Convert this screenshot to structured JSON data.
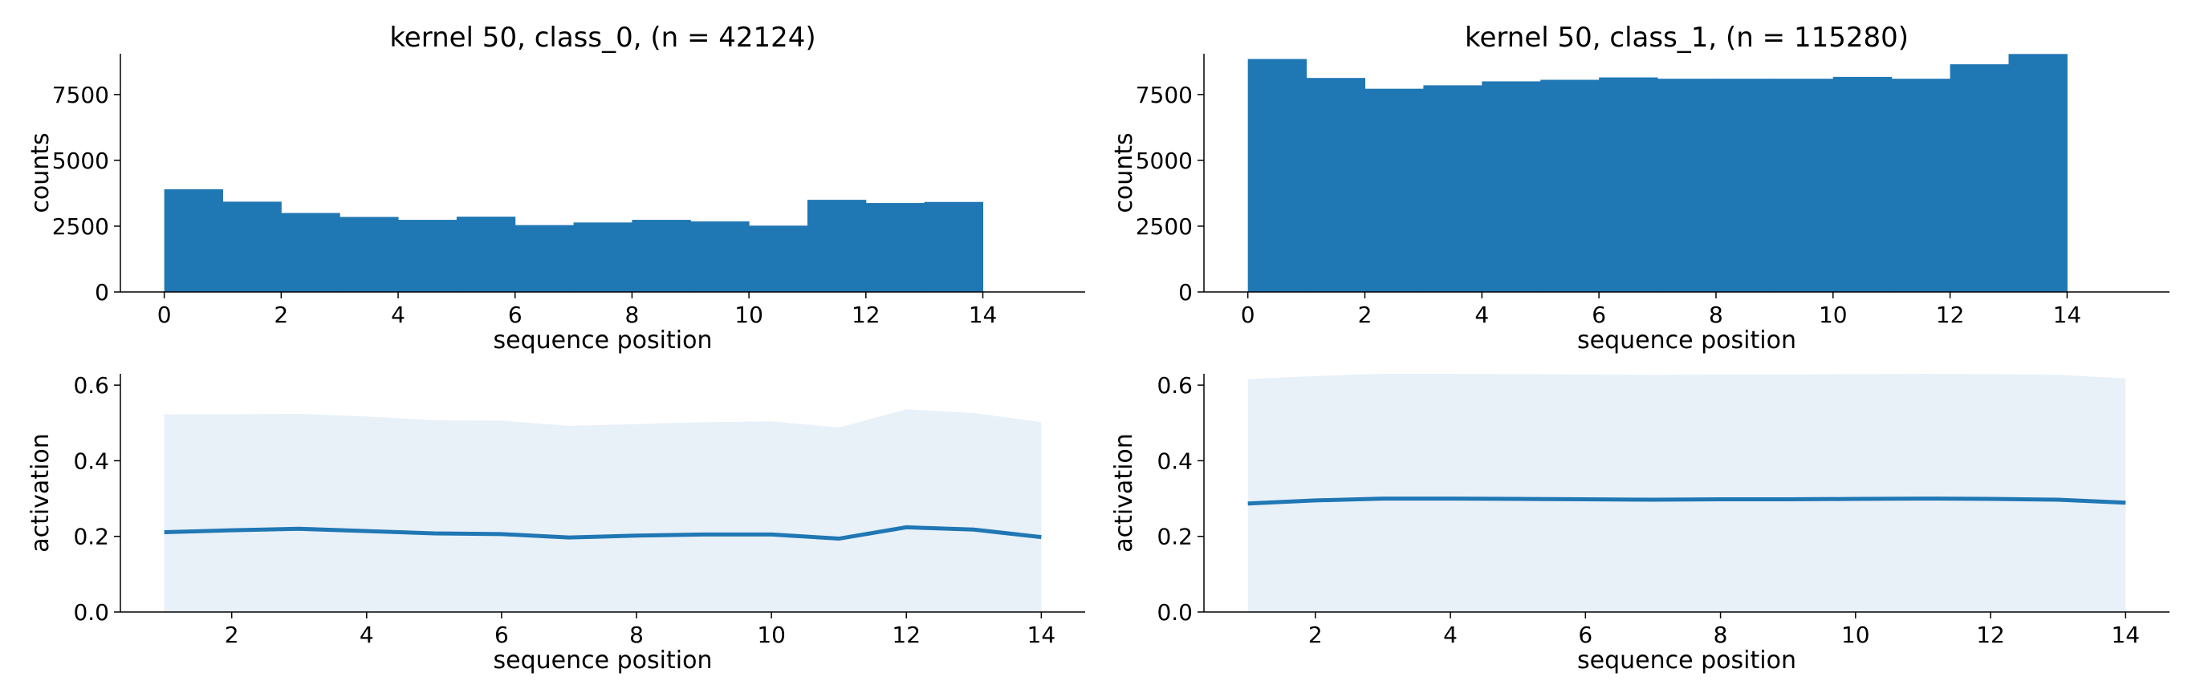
{
  "chart_data": [
    {
      "type": "bar",
      "title": "kernel 50, class_0, (n = 42124)",
      "xlabel": "sequence position",
      "ylabel": "counts",
      "xlim": [
        -0.75,
        15.75
      ],
      "ylim": [
        0,
        9050
      ],
      "xticks": [
        0,
        2,
        4,
        6,
        8,
        10,
        12,
        14
      ],
      "yticks": [
        0,
        2500,
        5000,
        7500
      ],
      "color": "#1f77b4",
      "bins": [
        {
          "start": 0,
          "end": 1,
          "value": 3900
        },
        {
          "start": 1,
          "end": 2,
          "value": 3430
        },
        {
          "start": 2,
          "end": 3,
          "value": 3000
        },
        {
          "start": 3,
          "end": 4,
          "value": 2850
        },
        {
          "start": 4,
          "end": 5,
          "value": 2740
        },
        {
          "start": 5,
          "end": 6,
          "value": 2860
        },
        {
          "start": 6,
          "end": 7,
          "value": 2540
        },
        {
          "start": 7,
          "end": 8,
          "value": 2640
        },
        {
          "start": 8,
          "end": 9,
          "value": 2740
        },
        {
          "start": 9,
          "end": 10,
          "value": 2680
        },
        {
          "start": 10,
          "end": 11,
          "value": 2520
        },
        {
          "start": 11,
          "end": 12,
          "value": 3500
        },
        {
          "start": 12,
          "end": 13,
          "value": 3380
        },
        {
          "start": 13,
          "end": 14,
          "value": 3420
        }
      ]
    },
    {
      "type": "bar",
      "title": "kernel 50, class_1, (n = 115280)",
      "xlabel": "sequence position",
      "ylabel": "counts",
      "xlim": [
        -0.75,
        15.75
      ],
      "ylim": [
        0,
        9050
      ],
      "xticks": [
        0,
        2,
        4,
        6,
        8,
        10,
        12,
        14
      ],
      "yticks": [
        0,
        2500,
        5000,
        7500
      ],
      "color": "#1f77b4",
      "bins": [
        {
          "start": 0,
          "end": 1,
          "value": 8850
        },
        {
          "start": 1,
          "end": 2,
          "value": 8130
        },
        {
          "start": 2,
          "end": 3,
          "value": 7720
        },
        {
          "start": 3,
          "end": 4,
          "value": 7850
        },
        {
          "start": 4,
          "end": 5,
          "value": 8000
        },
        {
          "start": 5,
          "end": 6,
          "value": 8060
        },
        {
          "start": 6,
          "end": 7,
          "value": 8150
        },
        {
          "start": 7,
          "end": 8,
          "value": 8100
        },
        {
          "start": 8,
          "end": 9,
          "value": 8100
        },
        {
          "start": 9,
          "end": 10,
          "value": 8100
        },
        {
          "start": 10,
          "end": 11,
          "value": 8170
        },
        {
          "start": 11,
          "end": 12,
          "value": 8100
        },
        {
          "start": 12,
          "end": 13,
          "value": 8650
        },
        {
          "start": 13,
          "end": 14,
          "value": 9040
        }
      ]
    },
    {
      "type": "area",
      "title": "",
      "xlabel": "sequence position",
      "ylabel": "activation",
      "xlim": [
        0.35,
        14.65
      ],
      "ylim": [
        0,
        0.63
      ],
      "xticks": [
        2,
        4,
        6,
        8,
        10,
        12,
        14
      ],
      "yticks": [
        0.0,
        0.2,
        0.4,
        0.6
      ],
      "line_color": "#1f77b4",
      "band_color": "#e8f0f8",
      "x": [
        1,
        2,
        3,
        4,
        5,
        6,
        7,
        8,
        9,
        10,
        11,
        12,
        13,
        14
      ],
      "series": [
        {
          "role": "mean",
          "values": [
            0.211,
            0.216,
            0.22,
            0.214,
            0.208,
            0.206,
            0.197,
            0.202,
            0.205,
            0.205,
            0.194,
            0.224,
            0.218,
            0.198
          ]
        },
        {
          "role": "upper",
          "values": [
            0.523,
            0.523,
            0.524,
            0.517,
            0.507,
            0.506,
            0.492,
            0.497,
            0.502,
            0.504,
            0.488,
            0.536,
            0.526,
            0.502
          ]
        },
        {
          "role": "lower",
          "values": [
            0,
            0,
            0,
            0,
            0,
            0,
            0,
            0,
            0,
            0,
            0,
            0,
            0,
            0
          ]
        }
      ]
    },
    {
      "type": "area",
      "title": "",
      "xlabel": "sequence position",
      "ylabel": "activation",
      "xlim": [
        0.35,
        14.65
      ],
      "ylim": [
        0,
        0.63
      ],
      "xticks": [
        2,
        4,
        6,
        8,
        10,
        12,
        14
      ],
      "yticks": [
        0.0,
        0.2,
        0.4,
        0.6
      ],
      "line_color": "#1f77b4",
      "band_color": "#e8f0f8",
      "x": [
        1,
        2,
        3,
        4,
        5,
        6,
        7,
        8,
        9,
        10,
        11,
        12,
        13,
        14
      ],
      "series": [
        {
          "role": "mean",
          "values": [
            0.287,
            0.295,
            0.3,
            0.3,
            0.299,
            0.298,
            0.297,
            0.298,
            0.298,
            0.299,
            0.3,
            0.299,
            0.297,
            0.289
          ]
        },
        {
          "role": "upper",
          "values": [
            0.616,
            0.624,
            0.63,
            0.63,
            0.629,
            0.628,
            0.627,
            0.628,
            0.628,
            0.629,
            0.63,
            0.629,
            0.627,
            0.618
          ]
        },
        {
          "role": "lower",
          "values": [
            0,
            0,
            0,
            0,
            0,
            0,
            0,
            0,
            0,
            0,
            0,
            0,
            0,
            0
          ]
        }
      ]
    }
  ]
}
